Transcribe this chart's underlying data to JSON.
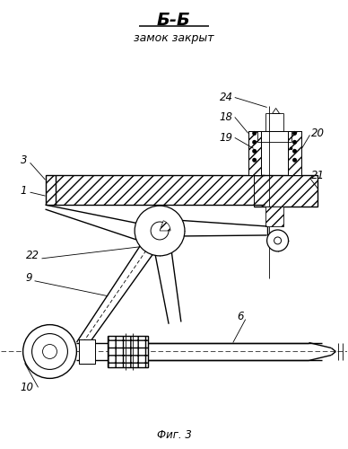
{
  "title_main": "Б-Б",
  "title_sub": "замок закрыт",
  "caption": "Фиг. 3",
  "bg_color": "#ffffff",
  "line_color": "#000000",
  "figsize": [
    3.88,
    5.0
  ],
  "dpi": 100
}
